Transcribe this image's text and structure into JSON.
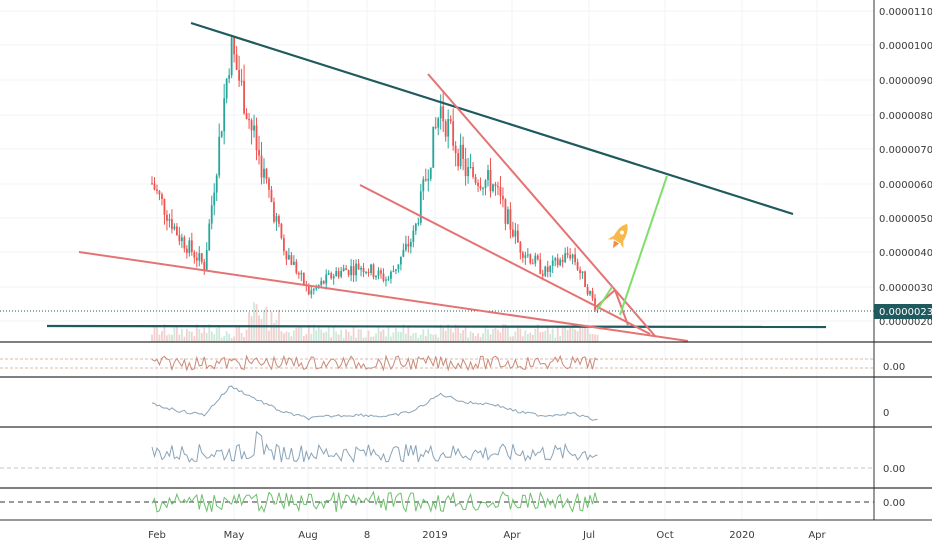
{
  "chart_data": {
    "type": "line",
    "title": "",
    "main_panel": {
      "y_ticks": [
        "0.00001100",
        "0.00001000",
        "0.00000900",
        "0.00000800",
        "0.00000700",
        "0.00000600",
        "0.00000500",
        "0.00000400",
        "0.00000300",
        "0.00000200"
      ],
      "current_price": "0.00000232",
      "ylim": [
        1.8e-06,
        1.13e-05
      ],
      "candles_approx": [
        {
          "month": "Feb 2018",
          "value": 6e-06
        },
        {
          "month": "Mar 2018",
          "value": 4.5e-06
        },
        {
          "month": "Apr 2018",
          "value": 3.6e-06
        },
        {
          "month": "May 2018",
          "value": 1e-05
        },
        {
          "month": "Jun 2018",
          "value": 7e-06
        },
        {
          "month": "Jul 2018",
          "value": 4.2e-06
        },
        {
          "month": "Aug 2018",
          "value": 2.8e-06
        },
        {
          "month": "Sep 2018",
          "value": 3.4e-06
        },
        {
          "month": "Oct 2018",
          "value": 3.6e-06
        },
        {
          "month": "Nov 2018",
          "value": 3.2e-06
        },
        {
          "month": "Dec 2018",
          "value": 4.5e-06
        },
        {
          "month": "Jan 2019",
          "value": 8.2e-06
        },
        {
          "month": "Feb 2019",
          "value": 6.3e-06
        },
        {
          "month": "Mar 2019",
          "value": 6e-06
        },
        {
          "month": "Apr 2019",
          "value": 4.2e-06
        },
        {
          "month": "May 2019",
          "value": 3.4e-06
        },
        {
          "month": "Jun 2019",
          "value": 4e-06
        },
        {
          "month": "Jul 2019",
          "value": 2.3e-06
        }
      ]
    },
    "indicator_panels": [
      {
        "label": "0.00",
        "color": "#c98a78"
      },
      {
        "label": "0",
        "color": "#8aa4b8"
      },
      {
        "label": "0.00",
        "color": "#8aa4b8"
      },
      {
        "label": "0.00",
        "color": "#6fbf6f"
      }
    ],
    "x_ticks": [
      "Feb",
      "May",
      "Aug",
      "8",
      "2019",
      "Apr",
      "Jul",
      "Oct",
      "2020",
      "Apr"
    ],
    "grid": true,
    "colors": {
      "candle_up": "#26a69a",
      "candle_down": "#ef5350",
      "trend_teal": "#1f5a5e",
      "trend_red": "#e57373",
      "projection_green": "#7ee06a",
      "price_badge": "#1f5a5e"
    },
    "annotations": [
      "rocket-icon"
    ]
  }
}
